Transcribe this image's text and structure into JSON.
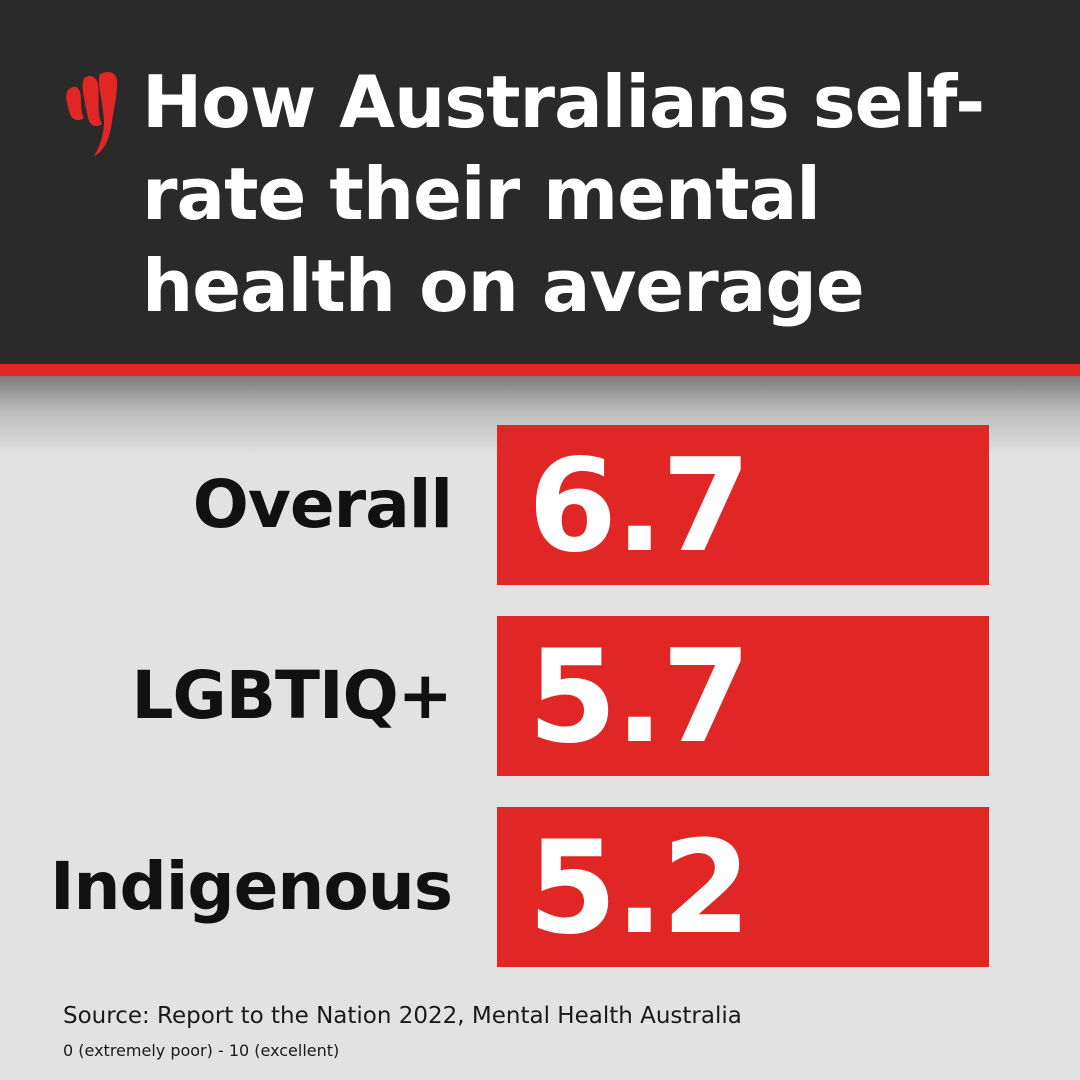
{
  "header": {
    "title": "How Australians self-rate their mental health on average",
    "title_lines": [
      "How Australians self-",
      "rate their mental",
      "health on average"
    ]
  },
  "colors": {
    "header_background": "#2a2a2a",
    "accent_red": "#e02726",
    "page_background": "#e2e2e2",
    "label_text": "#111111",
    "value_text": "#ffffff"
  },
  "brand": {
    "logo_icon": "sbs-logo-icon"
  },
  "chart_data": {
    "type": "bar",
    "orientation": "horizontal",
    "title": "How Australians self-rate their mental health on average",
    "categories": [
      "Overall",
      "LGBTIQ+",
      "Indigenous"
    ],
    "values": [
      6.7,
      5.7,
      5.2
    ],
    "value_labels": [
      "6.7",
      "5.7",
      "5.2"
    ],
    "xlim": [
      0,
      10
    ],
    "grid": false
  },
  "footer": {
    "source": "Source: Report to the Nation 2022, Mental Health Australia",
    "scale_note": "0 (extremely poor) - 10 (excellent)"
  }
}
